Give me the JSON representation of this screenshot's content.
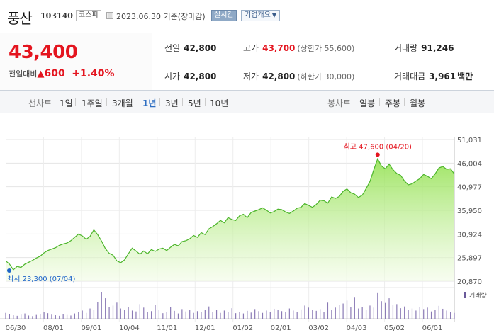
{
  "header": {
    "name": "풍산",
    "code": "103140",
    "market": "코스피",
    "date": "2023.06.30 기준(장마감)",
    "realtime": "실시간",
    "overview_label": "기업개요",
    "overview_caret": "▼"
  },
  "price": {
    "current": "43,400",
    "diff_label": "전일대비",
    "diff_arrow": "▲",
    "diff": "600",
    "rate": "+1.40%",
    "colors": {
      "up": "#e4151f"
    }
  },
  "summary": {
    "prev_label": "전일",
    "prev": "42,800",
    "high_label": "고가",
    "high": "43,700",
    "upper_limit": "(상한가 55,600)",
    "volume_label": "거래량",
    "volume": "91,246",
    "open_label": "시가",
    "open": "42,800",
    "low_label": "저가",
    "low": "42,800",
    "lower_limit": "(하한가 30,000)",
    "amount_label": "거래대금",
    "amount": "3,961",
    "amount_unit": "백만"
  },
  "periods": {
    "line_label": "선차트",
    "line_items": [
      "1일",
      "1주일",
      "3개월",
      "1년",
      "3년",
      "5년",
      "10년"
    ],
    "active": "1년",
    "candle_label": "봉차트",
    "candle_items": [
      "일봉",
      "주봉",
      "월봉"
    ]
  },
  "chart_data": {
    "type": "area",
    "y_ticks": [
      "51,031",
      "46,004",
      "40,977",
      "35,950",
      "30,924",
      "25,897",
      "20,870"
    ],
    "ylim": [
      20870,
      51031
    ],
    "x_ticks": [
      "06/30",
      "08/01",
      "09/01",
      "10/04",
      "11/01",
      "12/01",
      "01/02",
      "02/01",
      "03/02",
      "04/03",
      "05/02",
      "06/01"
    ],
    "high_label": "최고 47,600 (04/20)",
    "low_label": "최저 23,300 (07/04)",
    "volume_label": "거래량",
    "series": [
      {
        "values": [
          25200,
          24500,
          23300,
          24000,
          23800,
          24500,
          24900,
          25300,
          25800,
          26200,
          26900,
          27400,
          27700,
          28000,
          28500,
          28800,
          29000,
          29500,
          30200,
          30900,
          30500,
          29800,
          30400,
          31800,
          30800,
          29400,
          27800,
          26800,
          26400,
          25200,
          24800,
          25400,
          26700,
          27900,
          27300,
          26600,
          27300,
          26700,
          27600,
          27200,
          27700,
          27900,
          27400,
          28100,
          28700,
          28400,
          29300,
          29500,
          29900,
          30600,
          30200,
          31200,
          30800,
          32000,
          32500,
          33100,
          33800,
          33300,
          34400,
          34000,
          33800,
          34800,
          35100,
          34400,
          35500,
          35800,
          36100,
          36500,
          36000,
          35400,
          35700,
          36200,
          36100,
          35600,
          35300,
          35800,
          36400,
          36600,
          37400,
          37000,
          36600,
          37200,
          38100,
          38000,
          37500,
          38800,
          38500,
          38900,
          40000,
          40500,
          39700,
          39400,
          38700,
          39200,
          40600,
          42100,
          44600,
          46900,
          45400,
          44800,
          45800,
          44600,
          43800,
          43400,
          42200,
          41400,
          41600,
          42200,
          42700,
          43600,
          43200,
          42700,
          43700,
          45000,
          45300,
          44700,
          44800,
          43700
        ]
      },
      {
        "name": "거래량",
        "values": [
          20,
          15,
          12,
          10,
          14,
          18,
          11,
          9,
          13,
          16,
          22,
          19,
          14,
          12,
          10,
          15,
          13,
          11,
          18,
          24,
          28,
          20,
          35,
          30,
          58,
          92,
          70,
          40,
          45,
          55,
          35,
          30,
          40,
          28,
          25,
          50,
          38,
          22,
          26,
          48,
          31,
          19,
          22,
          40,
          27,
          18,
          33,
          25,
          29,
          20,
          26,
          22,
          30,
          42,
          24,
          31,
          20,
          28,
          22,
          36,
          19,
          24,
          18,
          27,
          21,
          33,
          26,
          20,
          28,
          23,
          34,
          30,
          26,
          22,
          35,
          28,
          24,
          32,
          45,
          38,
          29,
          27,
          33,
          24,
          55,
          30,
          38,
          48,
          52,
          62,
          40,
          72,
          35,
          40,
          30,
          45,
          38,
          90,
          60,
          54,
          70,
          48,
          50,
          36,
          42,
          30,
          35,
          28,
          40,
          33,
          38,
          25,
          30,
          44,
          34,
          28,
          22,
          20
        ]
      }
    ],
    "high_index": 97,
    "low_index": 2
  }
}
